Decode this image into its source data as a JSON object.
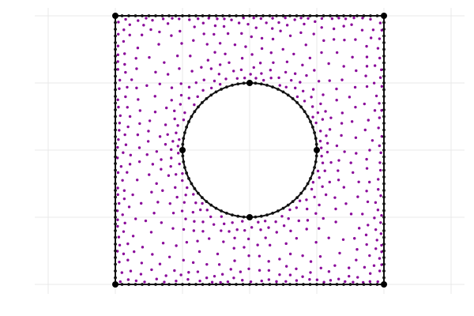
{
  "figure": {
    "colors": {
      "background": "#ffffff",
      "grid": "#e9e9e9",
      "interior_points": "#8a0a9a",
      "boundary": "#111111"
    },
    "domain": {
      "outer_square": {
        "x_range": [
          -1,
          1
        ],
        "y_range": [
          -1,
          1
        ]
      },
      "inner_circle": {
        "center": [
          0,
          0
        ],
        "radius": 0.5
      }
    },
    "boundary_nodes": {
      "square_edge_count_per_side": 40,
      "circle_count": 72,
      "marked_corners": [
        [
          -1,
          -1
        ],
        [
          1,
          -1
        ],
        [
          1,
          1
        ],
        [
          -1,
          1
        ]
      ],
      "marked_circle_points": [
        [
          0,
          0.5
        ],
        [
          -0.5,
          0
        ],
        [
          0.5,
          0
        ],
        [
          0,
          -0.5
        ]
      ]
    },
    "interior_points": {
      "count": 760,
      "seed": 1337
    },
    "grid": {
      "x_ticks": [
        -1.5,
        -1,
        -0.5,
        0,
        0.5,
        1,
        1.5
      ],
      "y_ticks": [
        -1,
        -0.5,
        0,
        0.5,
        1
      ]
    }
  }
}
